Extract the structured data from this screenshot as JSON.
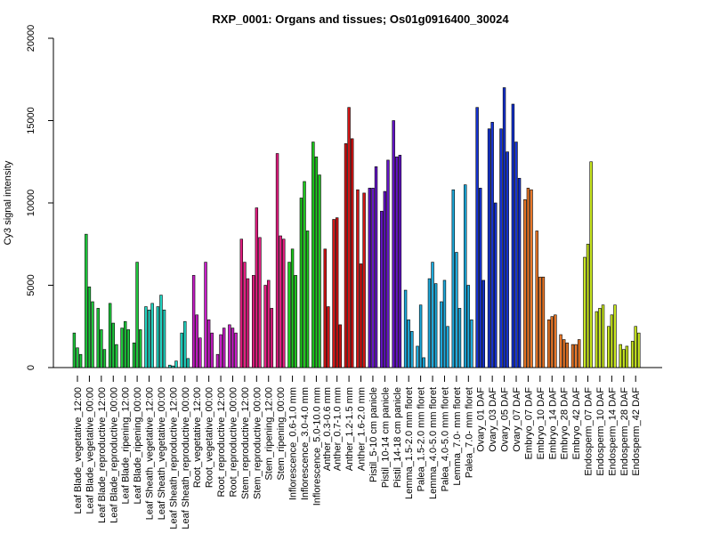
{
  "chart_data": {
    "type": "bar",
    "title": "RXP_0001: Organs and tissues; Os01g0916400_30024",
    "ylabel": "Cy3 signal intensity",
    "xlabel": "",
    "ylim": [
      0,
      20000
    ],
    "yticks": [
      0,
      5000,
      10000,
      15000,
      20000
    ],
    "grid": false,
    "labels": [
      "Leaf Blade_vegetative_12:00",
      "Leaf Blade_vegetative_00:00",
      "Leaf Blade_reproductive_12:00",
      "Leaf Blade_reproductive_00:00",
      "Leaf Blade_ripening_12:00",
      "Leaf Blade_ripening_00:00",
      "Leaf Sheath_vegetative_12:00",
      "Leaf Sheath_vegetative_00:00",
      "Leaf Sheath_reproductive_12:00",
      "Leaf Sheath_reproductive_00:00",
      "Root_vegetative_12:00",
      "Root_vegetative_00:00",
      "Root_reproductive_12:00",
      "Root_reproductive_00:00",
      "Stem_reproductive_12:00",
      "Stem_reproductive_00:00",
      "Stem_ripening_12:00",
      "Stem_ripening_00:00",
      "Inflorescence_0.6-1.0 mm",
      "Inflorescence_3.0-4.0 mm",
      "Inflorescence_5.0-10.0 mm",
      "Anther_0.3-0.6 mm",
      "Anther_0.7-1.0 mm",
      "Anther_1.2-1.5 mm",
      "Anther_1.6-2.0 mm",
      "Pistil_5-10 cm panicle",
      "Pistil_10-14 cm panicle",
      "Pistil_14-18 cm panicle",
      "Lemma_1.5-2.0 mm floret",
      "Palea_1.5-2.0 mm floret",
      "Lemma_4.0-5.0 mm floret",
      "Palea_4.0-5.0 mm floret",
      "Lemma_7.0- mm floret",
      "Palea_7.0- mm floret",
      "Ovary_01 DAF",
      "Ovary_03 DAF",
      "Ovary_05 DAF",
      "Ovary_07 DAF",
      "Embryo_07 DAF",
      "Embryo_10 DAF",
      "Embryo_14 DAF",
      "Embryo_28 DAF",
      "Embryo_42 DAF",
      "Endosperm_07 DAF",
      "Endosperm_10 DAF",
      "Endosperm_14 DAF",
      "Endosperm_28 DAF",
      "Endosperm_42 DAF"
    ],
    "groups": [
      {
        "color": "#1ec83c",
        "values": [
          2100,
          1200,
          800
        ]
      },
      {
        "color": "#1ec83c",
        "values": [
          8100,
          4900,
          4000
        ]
      },
      {
        "color": "#1ec83c",
        "values": [
          3600,
          2300,
          1100
        ]
      },
      {
        "color": "#1ec83c",
        "values": [
          3900,
          2700,
          1400
        ]
      },
      {
        "color": "#1ec83c",
        "values": [
          2400,
          2800,
          2300
        ]
      },
      {
        "color": "#1ec83c",
        "values": [
          1500,
          6400,
          2300
        ]
      },
      {
        "color": "#20d2c0",
        "values": [
          3700,
          3500,
          3900
        ]
      },
      {
        "color": "#20d2c0",
        "values": [
          3700,
          4400,
          3500
        ]
      },
      {
        "color": "#20d2c0",
        "values": [
          150,
          100,
          400
        ]
      },
      {
        "color": "#20d2c0",
        "values": [
          2100,
          2800,
          550
        ]
      },
      {
        "color": "#c81ec8",
        "values": [
          5600,
          3200,
          1800
        ]
      },
      {
        "color": "#c81ec8",
        "values": [
          6400,
          2900,
          2100
        ]
      },
      {
        "color": "#c81ec8",
        "values": [
          800,
          2000,
          2400
        ]
      },
      {
        "color": "#c81ec8",
        "values": [
          2600,
          2400,
          2100
        ]
      },
      {
        "color": "#e61e82",
        "values": [
          7800,
          6400,
          5400
        ]
      },
      {
        "color": "#e61e82",
        "values": [
          5600,
          9700,
          7900
        ]
      },
      {
        "color": "#e61e82",
        "values": [
          5000,
          5300,
          3600
        ]
      },
      {
        "color": "#e61e82",
        "values": [
          13000,
          8000,
          7800
        ]
      },
      {
        "color": "#1ec81e",
        "values": [
          6400,
          7200,
          5600
        ]
      },
      {
        "color": "#1ec81e",
        "values": [
          10300,
          11300,
          8300
        ]
      },
      {
        "color": "#1ec81e",
        "values": [
          13700,
          12800,
          11700
        ]
      },
      {
        "color": "#d21414",
        "values": [
          7200,
          3700
        ]
      },
      {
        "color": "#d21414",
        "values": [
          9000,
          9100,
          2600
        ]
      },
      {
        "color": "#d21414",
        "values": [
          13600,
          15800,
          13900
        ]
      },
      {
        "color": "#d21414",
        "values": [
          10800,
          6300,
          10600
        ]
      },
      {
        "color": "#6414c8",
        "values": [
          10900,
          10900,
          12200
        ]
      },
      {
        "color": "#6414c8",
        "values": [
          9500,
          10700,
          12600
        ]
      },
      {
        "color": "#6414c8",
        "values": [
          15000,
          12800,
          12900
        ]
      },
      {
        "color": "#1eaadc",
        "values": [
          4700,
          2900,
          2200
        ]
      },
      {
        "color": "#1eaadc",
        "values": [
          1300,
          3800,
          600
        ]
      },
      {
        "color": "#1eaadc",
        "values": [
          5400,
          6400,
          5100
        ]
      },
      {
        "color": "#1eaadc",
        "values": [
          4000,
          5300,
          2500
        ]
      },
      {
        "color": "#1eaadc",
        "values": [
          10800,
          7000,
          3600
        ]
      },
      {
        "color": "#1eaadc",
        "values": [
          11100,
          5000,
          2900
        ]
      },
      {
        "color": "#1432d2",
        "values": [
          15800,
          10900,
          5300
        ]
      },
      {
        "color": "#1432d2",
        "values": [
          14500,
          14900,
          10000
        ]
      },
      {
        "color": "#1432d2",
        "values": [
          14500,
          17000,
          13100
        ]
      },
      {
        "color": "#1432d2",
        "values": [
          16000,
          13700,
          11500
        ]
      },
      {
        "color": "#eb7828",
        "values": [
          10200,
          10900,
          10800
        ]
      },
      {
        "color": "#eb7828",
        "values": [
          8300,
          5500,
          5500
        ]
      },
      {
        "color": "#eb7828",
        "values": [
          2900,
          3100,
          3200
        ]
      },
      {
        "color": "#eb7828",
        "values": [
          2000,
          1700,
          1500
        ]
      },
      {
        "color": "#eb7828",
        "values": [
          1400,
          1400,
          1700
        ]
      },
      {
        "color": "#c8e61e",
        "values": [
          6700,
          7500,
          12500
        ]
      },
      {
        "color": "#c8e61e",
        "values": [
          3400,
          3600,
          3800
        ]
      },
      {
        "color": "#c8e61e",
        "values": [
          2500,
          3200,
          3800
        ]
      },
      {
        "color": "#c8e61e",
        "values": [
          1400,
          1100,
          1300
        ]
      },
      {
        "color": "#c8e61e",
        "values": [
          1600,
          2500,
          2100
        ]
      }
    ]
  }
}
